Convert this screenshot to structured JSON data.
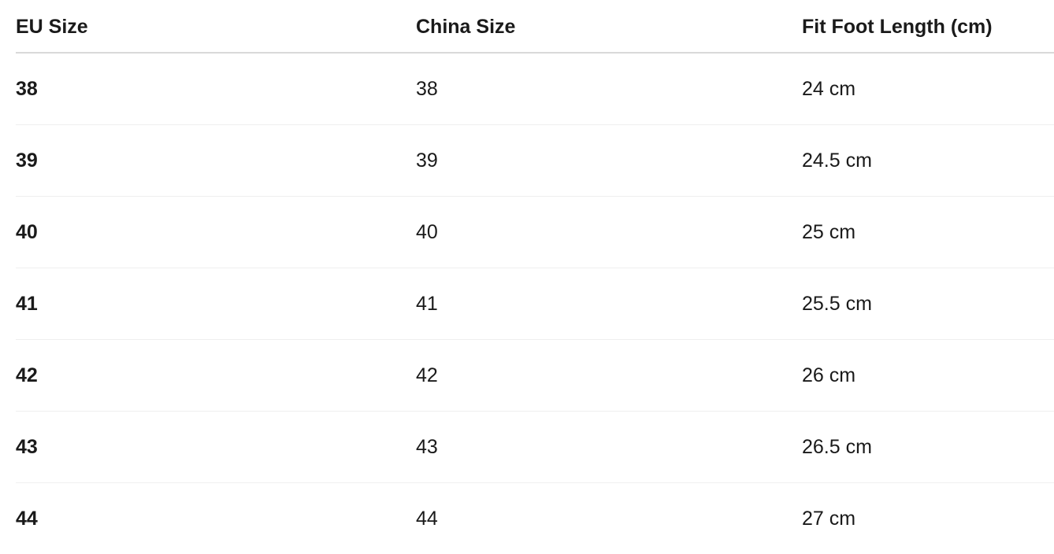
{
  "table": {
    "headers": [
      "EU Size",
      "China Size",
      "Fit Foot Length (cm)"
    ],
    "rows": [
      [
        "38",
        "38",
        "24 cm"
      ],
      [
        "39",
        "39",
        "24.5 cm"
      ],
      [
        "40",
        "40",
        "25 cm"
      ],
      [
        "41",
        "41",
        "25.5 cm"
      ],
      [
        "42",
        "42",
        "26 cm"
      ],
      [
        "43",
        "43",
        "26.5 cm"
      ],
      [
        "44",
        "44",
        "27 cm"
      ]
    ]
  }
}
